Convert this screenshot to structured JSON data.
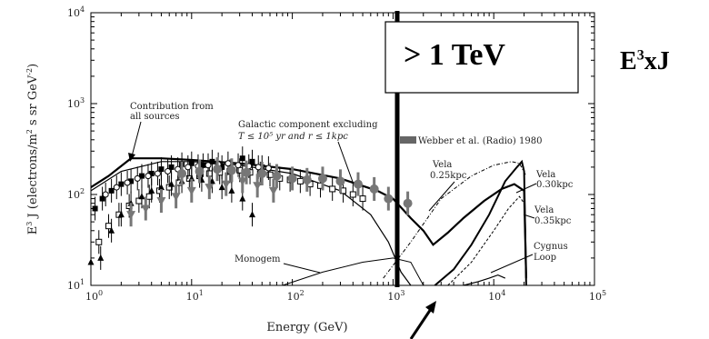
{
  "chart_data": {
    "type": "scatter",
    "xlabel": "Energy (GeV)",
    "ylabel_parts": {
      "pre": "E",
      "exp3": "3",
      "mid": " J (electrons/m",
      "exp2": "2",
      "mid2": " s sr GeV",
      "expm2": "-2",
      "post": ")"
    },
    "xscale": "log",
    "yscale": "log",
    "xlim": [
      1,
      100000
    ],
    "ylim": [
      10,
      10000
    ],
    "x_ticks": [
      {
        "b": "10",
        "e": "0"
      },
      {
        "b": "10",
        "e": "1"
      },
      {
        "b": "10",
        "e": "2"
      },
      {
        "b": "10",
        "e": "3"
      },
      {
        "b": "10",
        "e": "4"
      },
      {
        "b": "10",
        "e": "5"
      }
    ],
    "y_ticks": [
      {
        "b": "10",
        "e": "1"
      },
      {
        "b": "10",
        "e": "2"
      },
      {
        "b": "10",
        "e": "3"
      },
      {
        "b": "10",
        "e": "4"
      }
    ],
    "annotations": {
      "contribution": [
        "Contribution from",
        "all sources"
      ],
      "galactic": [
        "Galactic component excluding",
        "T ≤ 10⁵ yr and r ≤ 1kpc"
      ],
      "webber": "Webber et al. (Radio) 1980",
      "vela025": [
        "Vela",
        "0.25kpc"
      ],
      "vela030": [
        "Vela",
        "0.30kpc"
      ],
      "vela035": [
        "Vela",
        "0.35kpc"
      ],
      "cygnus": [
        "Cygnus",
        "Loop"
      ],
      "monogem": "Monogem"
    },
    "overlay_title": "> 1 TeV",
    "side_label": {
      "base": "E",
      "exp": "3",
      "rest": "xJ"
    },
    "curves": {
      "total": [
        [
          1,
          120
        ],
        [
          1.5,
          160
        ],
        [
          2.5,
          250
        ],
        [
          5,
          250
        ],
        [
          10,
          240
        ],
        [
          30,
          220
        ],
        [
          100,
          190
        ],
        [
          300,
          150
        ],
        [
          700,
          110
        ],
        [
          1000,
          90
        ],
        [
          1500,
          55
        ],
        [
          2000,
          40
        ],
        [
          2500,
          28
        ],
        [
          3500,
          38
        ],
        [
          5000,
          55
        ],
        [
          8000,
          85
        ],
        [
          12000,
          115
        ],
        [
          16000,
          130
        ],
        [
          20000,
          110
        ],
        [
          21000,
          12
        ]
      ],
      "galactic": [
        [
          1,
          110
        ],
        [
          2,
          180
        ],
        [
          5,
          230
        ],
        [
          10,
          230
        ],
        [
          30,
          210
        ],
        [
          100,
          170
        ],
        [
          300,
          110
        ],
        [
          600,
          60
        ],
        [
          900,
          30
        ],
        [
          1200,
          14
        ],
        [
          1500,
          10
        ]
      ],
      "vela030": [
        [
          2600,
          10
        ],
        [
          4000,
          15
        ],
        [
          6000,
          28
        ],
        [
          9000,
          60
        ],
        [
          13000,
          140
        ],
        [
          17000,
          200
        ],
        [
          19000,
          230
        ],
        [
          20000,
          180
        ],
        [
          21000,
          10
        ]
      ],
      "vela025": [
        [
          800,
          12
        ],
        [
          1500,
          30
        ],
        [
          3000,
          90
        ],
        [
          6000,
          160
        ],
        [
          10000,
          210
        ],
        [
          15000,
          230
        ],
        [
          18000,
          220
        ],
        [
          21000,
          160
        ]
      ],
      "vela035": [
        [
          3500,
          10
        ],
        [
          6000,
          18
        ],
        [
          10000,
          40
        ],
        [
          14000,
          70
        ],
        [
          18000,
          95
        ],
        [
          20000,
          80
        ],
        [
          21000,
          10
        ]
      ],
      "monogem": [
        [
          80,
          10
        ],
        [
          200,
          14
        ],
        [
          500,
          18
        ],
        [
          1000,
          20
        ],
        [
          1500,
          18
        ],
        [
          2000,
          10
        ]
      ],
      "cygnus": [
        [
          5000,
          10
        ],
        [
          7000,
          11
        ],
        [
          9000,
          12
        ],
        [
          11000,
          13
        ],
        [
          13000,
          12
        ]
      ]
    },
    "series": [
      {
        "name": "filled squares",
        "marker": "square-filled",
        "x": [
          1.1,
          1.3,
          1.6,
          2.0,
          2.5,
          3.2,
          4.0,
          5.0,
          6.3,
          8.0,
          10,
          13,
          16,
          20,
          25,
          32,
          40,
          50
        ],
        "y": [
          70,
          90,
          110,
          130,
          140,
          160,
          170,
          190,
          200,
          215,
          220,
          210,
          230,
          200,
          180,
          250,
          230,
          200
        ]
      },
      {
        "name": "open squares",
        "marker": "square-open",
        "x": [
          1.2,
          1.5,
          1.9,
          2.4,
          3.0,
          3.8,
          4.8,
          6.0,
          7.5,
          9.5,
          12,
          15,
          19,
          24,
          30,
          38,
          48,
          60,
          75,
          95,
          120,
          150,
          190,
          250,
          320,
          400,
          500
        ],
        "y": [
          30,
          45,
          60,
          75,
          85,
          95,
          110,
          120,
          135,
          150,
          160,
          170,
          175,
          180,
          185,
          175,
          170,
          165,
          150,
          145,
          140,
          130,
          125,
          115,
          110,
          100,
          90
        ]
      },
      {
        "name": "open circles",
        "marker": "circle-open",
        "x": [
          1.4,
          1.8,
          2.3,
          2.9,
          3.7,
          4.6,
          5.8,
          7.3,
          9.2,
          11.6,
          14.6,
          18.4,
          23,
          29,
          37,
          46,
          58
        ],
        "y": [
          100,
          120,
          135,
          150,
          160,
          170,
          180,
          190,
          200,
          205,
          210,
          215,
          220,
          210,
          205,
          200,
          195
        ]
      },
      {
        "name": "filled triangles",
        "marker": "triangle-filled",
        "x": [
          1.0,
          1.25,
          1.6,
          2.0,
          2.5,
          3.2,
          4.0,
          5.0,
          6.3,
          8.0,
          10,
          12.6,
          16,
          20,
          25,
          32,
          40
        ],
        "y": [
          18,
          20,
          40,
          60,
          80,
          95,
          110,
          120,
          130,
          140,
          150,
          145,
          140,
          120,
          110,
          90,
          60
        ]
      },
      {
        "name": "gray circles",
        "marker": "circle-gray",
        "x": [
          8,
          12,
          18,
          25,
          35,
          50,
          70,
          100,
          140,
          200,
          300,
          450,
          650,
          900,
          1400
        ],
        "y": [
          170,
          180,
          190,
          185,
          175,
          170,
          160,
          150,
          145,
          150,
          140,
          130,
          115,
          90,
          80
        ]
      },
      {
        "name": "gray triangles",
        "marker": "triangle-gray",
        "x": [
          2.5,
          3.5,
          5,
          7,
          10,
          15,
          22,
          32,
          45,
          65
        ],
        "y": [
          60,
          70,
          85,
          95,
          110,
          120,
          130,
          140,
          125,
          110
        ]
      }
    ]
  }
}
